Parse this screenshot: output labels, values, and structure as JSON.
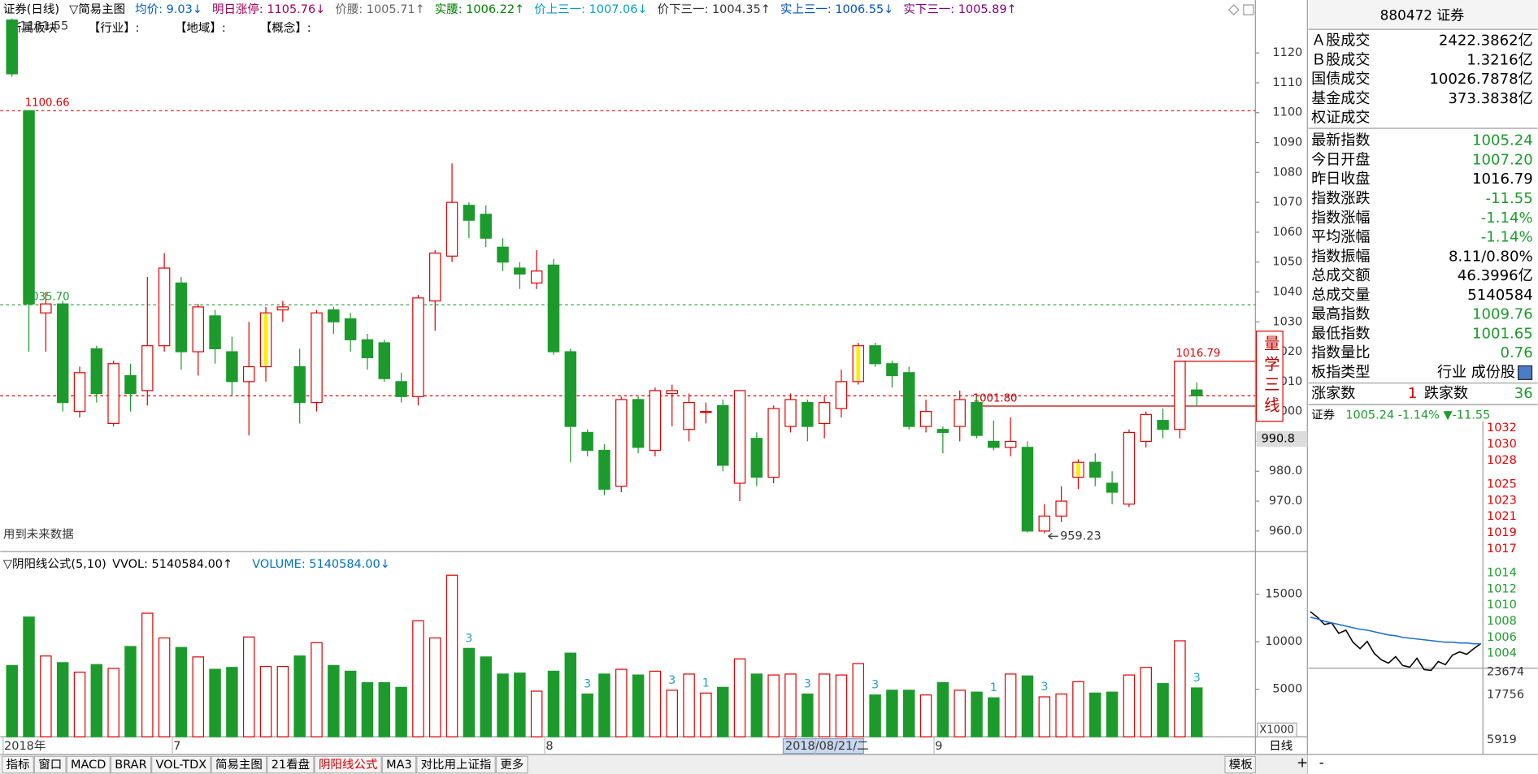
{
  "indicator_bar": [
    {
      "text": "证券(日线)",
      "color": "#000000"
    },
    {
      "text": "▽简易主图",
      "color": "#000000"
    },
    {
      "text": "均价: 9.03↓",
      "color": "#0060c0"
    },
    {
      "text": "明日涨停: 1105.76↓",
      "color": "#a0005a"
    },
    {
      "text": "价腰: 1005.71↑",
      "color": "#666666"
    },
    {
      "text": "实腰: 1006.22↑",
      "color": "#008000"
    },
    {
      "text": "价上三一: 1007.06↓",
      "color": "#00a0c0"
    },
    {
      "text": "价下三一: 1004.35↑",
      "color": "#333333"
    },
    {
      "text": "实上三一: 1006.55↓",
      "color": "#0050c0"
    },
    {
      "text": "实下三一: 1005.89↑",
      "color": "#800080"
    }
  ],
  "sector_line": [
    "所属板块",
    "【行业】:",
    "【地域】:",
    "【概念】:"
  ],
  "note": "用到未来数据",
  "side_box": "量学三线",
  "volume_bar": [
    {
      "text": "▽阴阳线公式(5,10)",
      "color": "#000000"
    },
    {
      "text": "VVOL: 5140584.00↑",
      "color": "#000000"
    },
    {
      "text": "VOLUME: 5140584.00↓",
      "color": "#0070c0"
    }
  ],
  "tabs": [
    "指标",
    "窗口",
    "MACD",
    "BRAR",
    "VOL-TDX",
    "简易主图",
    "21看盘",
    "阴阳线公式",
    "MA3",
    "对比用上证指",
    "更多"
  ],
  "active_tab": 7,
  "template_button": "模板",
  "period": "日线",
  "zoom": [
    "+",
    "-"
  ],
  "info_panel": {
    "title": "880472 证券",
    "groups": [
      [
        {
          "label": "Ａ股成交",
          "value": "2422.3862亿",
          "color": "#000000"
        },
        {
          "label": "Ｂ股成交",
          "value": "1.3216亿",
          "color": "#000000"
        },
        {
          "label": "国债成交",
          "value": "10026.7878亿",
          "color": "#000000"
        },
        {
          "label": "基金成交",
          "value": "373.3838亿",
          "color": "#000000"
        },
        {
          "label": "权证成交"
        }
      ],
      [
        {
          "label": "最新指数",
          "value": "1005.24",
          "color": "#1d9a2c"
        },
        {
          "label": "今日开盘",
          "value": "1007.20",
          "color": "#1d9a2c"
        },
        {
          "label": "昨日收盘",
          "value": "1016.79",
          "color": "#000000"
        },
        {
          "label": "指数涨跌",
          "value": "-11.55",
          "color": "#1d9a2c"
        },
        {
          "label": "指数涨幅",
          "value": "-1.14%",
          "color": "#1d9a2c"
        },
        {
          "label": "平均涨幅",
          "value": "-1.14%",
          "color": "#1d9a2c"
        },
        {
          "label": "指数振幅",
          "value": "8.11/0.80%",
          "color": "#000000"
        },
        {
          "label": "总成交额",
          "value": "46.3996亿",
          "color": "#000000"
        },
        {
          "label": "总成交量",
          "value": "5140584",
          "color": "#000000"
        },
        {
          "label": "最高指数",
          "value": "1009.76",
          "color": "#1d9a2c"
        },
        {
          "label": "最低指数",
          "value": "1001.65",
          "color": "#1d9a2c"
        },
        {
          "label": "指数量比",
          "value": "0.76",
          "color": "#1d9a2c"
        },
        {
          "label": "板指类型",
          "value": "行业 成份股",
          "color": "#000000"
        }
      ]
    ],
    "breadth": [
      {
        "text": "涨家数",
        "color": "#000000"
      },
      {
        "text": "1",
        "color": "#e00000"
      },
      {
        "text": "跌家数",
        "color": "#000000"
      },
      {
        "text": "36",
        "color": "#1d9a2c"
      }
    ]
  },
  "chart_data": [
    {
      "type": "candlestick",
      "categories": [
        "2018年",
        null,
        null,
        null,
        null,
        null,
        null,
        null,
        null,
        null,
        "7",
        null,
        null,
        null,
        null,
        null,
        null,
        null,
        null,
        null,
        null,
        null,
        null,
        null,
        null,
        null,
        null,
        null,
        null,
        null,
        null,
        null,
        "8",
        null,
        null,
        null,
        null,
        null,
        null,
        null,
        null,
        null,
        null,
        null,
        null,
        null,
        null,
        null,
        "2018/08/21/二",
        null,
        null,
        null,
        null,
        null,
        null,
        "9",
        null,
        null,
        null,
        null,
        null,
        null,
        null,
        null,
        null,
        null,
        null,
        null,
        null,
        null,
        null
      ],
      "open": [
        1131,
        1100.66,
        1033,
        1036,
        1000,
        1021,
        996,
        1012,
        1007,
        1022,
        1043,
        1020,
        1032,
        1020,
        1010,
        1015,
        1034,
        1015,
        1003,
        1034,
        1031,
        1024,
        1023,
        1010,
        1005,
        1037,
        1052,
        1069,
        1066,
        1055,
        1048,
        1043,
        1049,
        1020,
        993,
        987,
        975,
        1004,
        987,
        1006,
        994,
        1000,
        1002,
        976,
        991,
        978,
        995,
        1003,
        996,
        1001,
        1010,
        1022,
        1016,
        1013,
        995,
        994,
        995,
        1003,
        990,
        988,
        988,
        960,
        965,
        978,
        983,
        976,
        969,
        990,
        997,
        994,
        1007.2
      ],
      "high": [
        1131.55,
        1100.66,
        1040,
        1037,
        1015,
        1022,
        1017,
        1016,
        1045,
        1053,
        1045,
        1036,
        1034,
        1025,
        1030,
        1035,
        1037,
        1021,
        1034,
        1035,
        1033,
        1026,
        1024,
        1013,
        1039,
        1054,
        1083,
        1070,
        1069,
        1058,
        1050,
        1054,
        1051,
        1021,
        994,
        989,
        1005,
        1005,
        1008,
        1009,
        1006,
        1003,
        1004,
        1007,
        993,
        1002,
        1006,
        1004,
        1005,
        1014,
        1023,
        1023,
        1017,
        1015,
        1004,
        995,
        1007,
        1005,
        997,
        998,
        990,
        969,
        975,
        984,
        986,
        980,
        994,
        1000,
        1001,
        1016.79,
        1009.76
      ],
      "low": [
        1112,
        1020,
        1020,
        1000,
        998,
        1003,
        995,
        1000,
        1002,
        1020,
        1014,
        1012,
        1016,
        1005,
        992,
        1010,
        1030,
        996,
        1000,
        1026,
        1020,
        1014,
        1010,
        1003,
        1002,
        1027,
        1050,
        1058,
        1055,
        1047,
        1041,
        1041,
        1019,
        983,
        985,
        972,
        973,
        986,
        985,
        995,
        990,
        996,
        980,
        970,
        975,
        976,
        993,
        990,
        991,
        998,
        1009,
        1015,
        1008,
        994,
        993,
        986,
        990,
        991,
        987,
        985,
        959.5,
        959.23,
        963,
        974,
        975,
        969,
        968,
        988,
        991,
        991,
        1001.65
      ],
      "close": [
        1113,
        1036,
        1036,
        1003,
        1013,
        1006,
        1016,
        1006,
        1022,
        1048,
        1020,
        1035,
        1021,
        1010,
        1015,
        1033,
        1035,
        1003,
        1033,
        1030,
        1024,
        1018,
        1011,
        1005,
        1038,
        1053,
        1070,
        1064,
        1058,
        1050,
        1046,
        1047,
        1020,
        995,
        987,
        974,
        1004,
        988,
        1007,
        1007,
        1003,
        1000,
        982,
        1007,
        978,
        1001,
        1004,
        995,
        1003,
        1010,
        1022,
        1016,
        1012,
        995,
        1000,
        993,
        1004,
        992,
        988,
        990,
        960,
        965,
        970,
        983,
        978,
        973,
        993,
        999,
        994,
        1016.79,
        1005.24
      ],
      "up_color": "#e00000",
      "down_color": "#1d9a2c",
      "highlight": [
        15,
        50,
        63
      ],
      "highlight_color": "#ffee00",
      "high_labels": [
        0
      ],
      "low_labels": [
        61
      ],
      "hlines": [
        {
          "value": 1100.66,
          "label": "1100.66",
          "color": "#e00000",
          "dash": true,
          "at": 1
        },
        {
          "value": 1035.7,
          "label": "1035.70",
          "color": "#1d9a2c",
          "dash": true,
          "at": 1
        },
        {
          "value": 1005.24,
          "color": "#e00000",
          "dash": true
        },
        {
          "value": 1001.8,
          "label": "1001.80",
          "color": "#c00000",
          "dash": false,
          "from": 57
        },
        {
          "value": 1016.79,
          "label": "1016.79",
          "color": "#e00000",
          "dash": false,
          "from": 69
        }
      ],
      "cursor_value": 990.8,
      "highlight_category": 48,
      "ylim": [
        955,
        1133
      ],
      "yticks": [
        {
          "value": 960,
          "label": "960.0"
        },
        {
          "value": 970,
          "label": "970.0"
        },
        {
          "value": 980,
          "label": "980.0"
        },
        {
          "value": 990,
          "label": "990.0"
        },
        1000,
        1010,
        1020,
        1030,
        1040,
        1050,
        1060,
        1070,
        1080,
        1090,
        1100,
        1110,
        1120
      ]
    },
    {
      "type": "bar",
      "values": [
        7500,
        12600,
        8500,
        7800,
        6800,
        7600,
        7200,
        9500,
        13000,
        10400,
        9400,
        8400,
        7100,
        7300,
        10500,
        7400,
        7400,
        8500,
        9900,
        7500,
        6900,
        5700,
        5700,
        5200,
        12200,
        10400,
        17000,
        9300,
        8400,
        6600,
        6700,
        4800,
        6900,
        8800,
        4500,
        6600,
        7100,
        6500,
        6900,
        4900,
        6600,
        4600,
        5200,
        8200,
        6600,
        6500,
        6600,
        4500,
        6600,
        6500,
        7700,
        4400,
        4900,
        4900,
        4400,
        5700,
        4900,
        4700,
        4100,
        6600,
        6400,
        4200,
        4500,
        5800,
        4600,
        4700,
        6500,
        7300,
        5600,
        10100,
        5140.584
      ],
      "scale_label": "X1000",
      "signals": [
        {
          "index": 27,
          "value": 3
        },
        {
          "index": 34,
          "value": 3
        },
        {
          "index": 39,
          "value": 3
        },
        {
          "index": 41,
          "value": 1
        },
        {
          "index": 47,
          "value": 3
        },
        {
          "index": 51,
          "value": 3
        },
        {
          "index": 58,
          "value": 1
        },
        {
          "index": 61,
          "value": 3
        },
        {
          "index": 70,
          "value": 3
        }
      ],
      "signal_color": "#2aa0c0",
      "ylim": [
        0,
        18000
      ],
      "yticks": [
        5000,
        10000,
        15000
      ]
    },
    {
      "type": "line",
      "title": "证券",
      "subtitle": "1005.24 -1.14% ▼-11.55",
      "ref": 1016.79,
      "series": [
        {
          "color": "#000000",
          "values": [
            1009.2,
            1008.5,
            1007.6,
            1007.8,
            1006.5,
            1006.9,
            1005.4,
            1004.6,
            1005.5,
            1004.0,
            1003.2,
            1002.8,
            1003.6,
            1002.5,
            1002.3,
            1003.4,
            1002.0,
            1001.9,
            1003.0,
            1002.6,
            1003.8,
            1004.2,
            1003.9,
            1004.6,
            1005.24
          ]
        },
        {
          "color": "#1f6fd0",
          "values": [
            1008.5,
            1008.3,
            1008.0,
            1007.8,
            1007.6,
            1007.4,
            1007.2,
            1007.0,
            1006.9,
            1006.7,
            1006.5,
            1006.3,
            1006.2,
            1006.0,
            1005.9,
            1005.8,
            1005.7,
            1005.6,
            1005.5,
            1005.4,
            1005.4,
            1005.3,
            1005.3,
            1005.2,
            1005.2
          ]
        }
      ],
      "ylim": [
        1002,
        1033
      ],
      "yticks": [
        1004,
        1006,
        1008,
        1010,
        1012,
        1014,
        1017,
        1019,
        1021,
        1023,
        1025,
        1028,
        1030,
        1032
      ],
      "volume_ylim": [
        0,
        23674
      ],
      "volume_ticks": [
        5919,
        17756,
        23674
      ]
    }
  ]
}
